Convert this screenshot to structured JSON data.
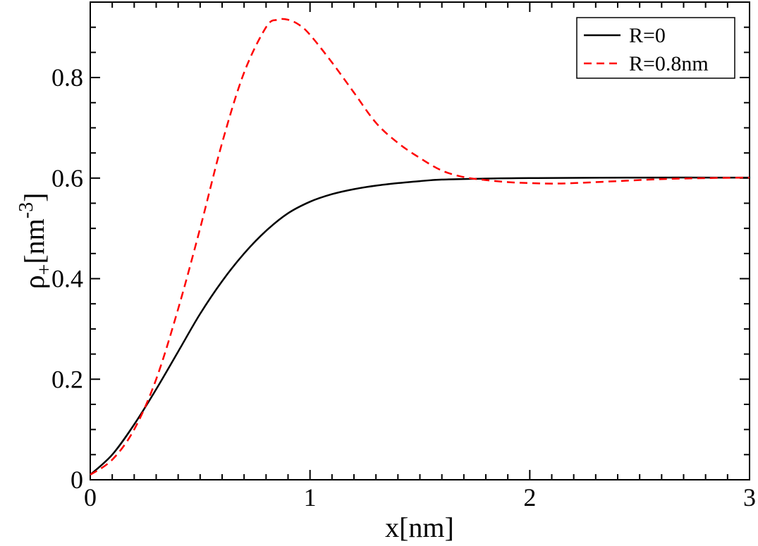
{
  "chart_data": {
    "type": "line",
    "xlabel": "x[nm]",
    "ylabel": {
      "base": "ρ",
      "sub": "+",
      "unit_open": "[nm",
      "sup": "-3",
      "unit_close": "]"
    },
    "xlim": [
      0,
      3
    ],
    "ylim": [
      0,
      0.95
    ],
    "x_ticks": [
      0,
      1,
      2,
      3
    ],
    "x_tick_labels": [
      "0",
      "1",
      "2",
      "3"
    ],
    "y_ticks": [
      0,
      0.2,
      0.4,
      0.6,
      0.8
    ],
    "y_tick_labels": [
      "0",
      "0.2",
      "0.4",
      "0.6",
      "0.8"
    ],
    "grid": false,
    "legend_position": "top-right",
    "series": [
      {
        "name": "R=0",
        "color": "#000000",
        "dash": "solid",
        "x": [
          0,
          0.1,
          0.2,
          0.3,
          0.4,
          0.5,
          0.6,
          0.7,
          0.8,
          0.9,
          1.0,
          1.1,
          1.2,
          1.3,
          1.4,
          1.5,
          1.6,
          1.8,
          2.0,
          2.5,
          3.0
        ],
        "y": [
          0.01,
          0.05,
          0.11,
          0.18,
          0.255,
          0.33,
          0.395,
          0.45,
          0.495,
          0.53,
          0.553,
          0.568,
          0.578,
          0.585,
          0.59,
          0.594,
          0.597,
          0.599,
          0.6,
          0.601,
          0.601
        ]
      },
      {
        "name": "R=0.8nm",
        "color": "#ff0000",
        "dash": "dashed",
        "x": [
          0,
          0.1,
          0.2,
          0.3,
          0.4,
          0.5,
          0.6,
          0.7,
          0.8,
          0.85,
          0.9,
          0.95,
          1.0,
          1.1,
          1.2,
          1.3,
          1.4,
          1.5,
          1.6,
          1.7,
          1.8,
          1.9,
          2.0,
          2.1,
          2.2,
          2.4,
          2.6,
          2.8,
          3.0
        ],
        "y": [
          0.01,
          0.04,
          0.1,
          0.2,
          0.34,
          0.5,
          0.67,
          0.81,
          0.9,
          0.915,
          0.915,
          0.905,
          0.885,
          0.83,
          0.77,
          0.71,
          0.67,
          0.64,
          0.615,
          0.602,
          0.596,
          0.592,
          0.59,
          0.589,
          0.59,
          0.594,
          0.598,
          0.6,
          0.601
        ]
      }
    ]
  }
}
